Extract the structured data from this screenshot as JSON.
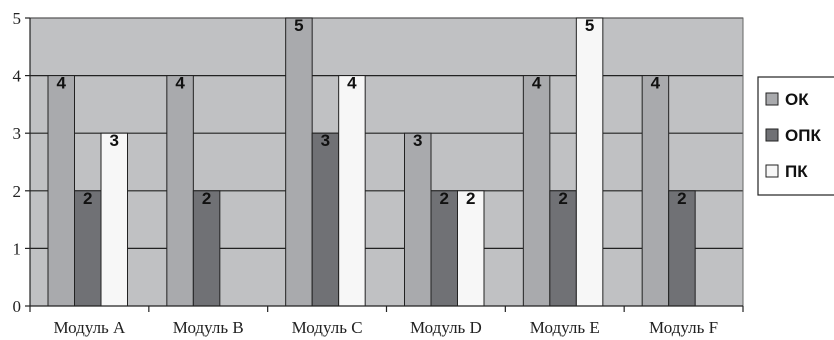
{
  "chart_data": {
    "type": "bar",
    "title": "",
    "xlabel": "",
    "ylabel": "",
    "categories": [
      "Модуль A",
      "Модуль B",
      "Модуль C",
      "Модуль D",
      "Модуль E",
      "Модуль F"
    ],
    "ylim": [
      0,
      5
    ],
    "yticks": [
      "0",
      "1",
      "2",
      "3",
      "4",
      "5"
    ],
    "grid": true,
    "legend_position": "right",
    "series": [
      {
        "name": "ОК",
        "color": "#a9aaad",
        "values": [
          4,
          4,
          5,
          3,
          4,
          4
        ]
      },
      {
        "name": "ОПК",
        "color": "#707175",
        "values": [
          2,
          2,
          3,
          2,
          2,
          2
        ]
      },
      {
        "name": "ПК",
        "color": "#f7f7f7",
        "values": [
          3,
          null,
          4,
          2,
          5,
          null
        ]
      }
    ],
    "plot_background": "#c0c1c3"
  }
}
